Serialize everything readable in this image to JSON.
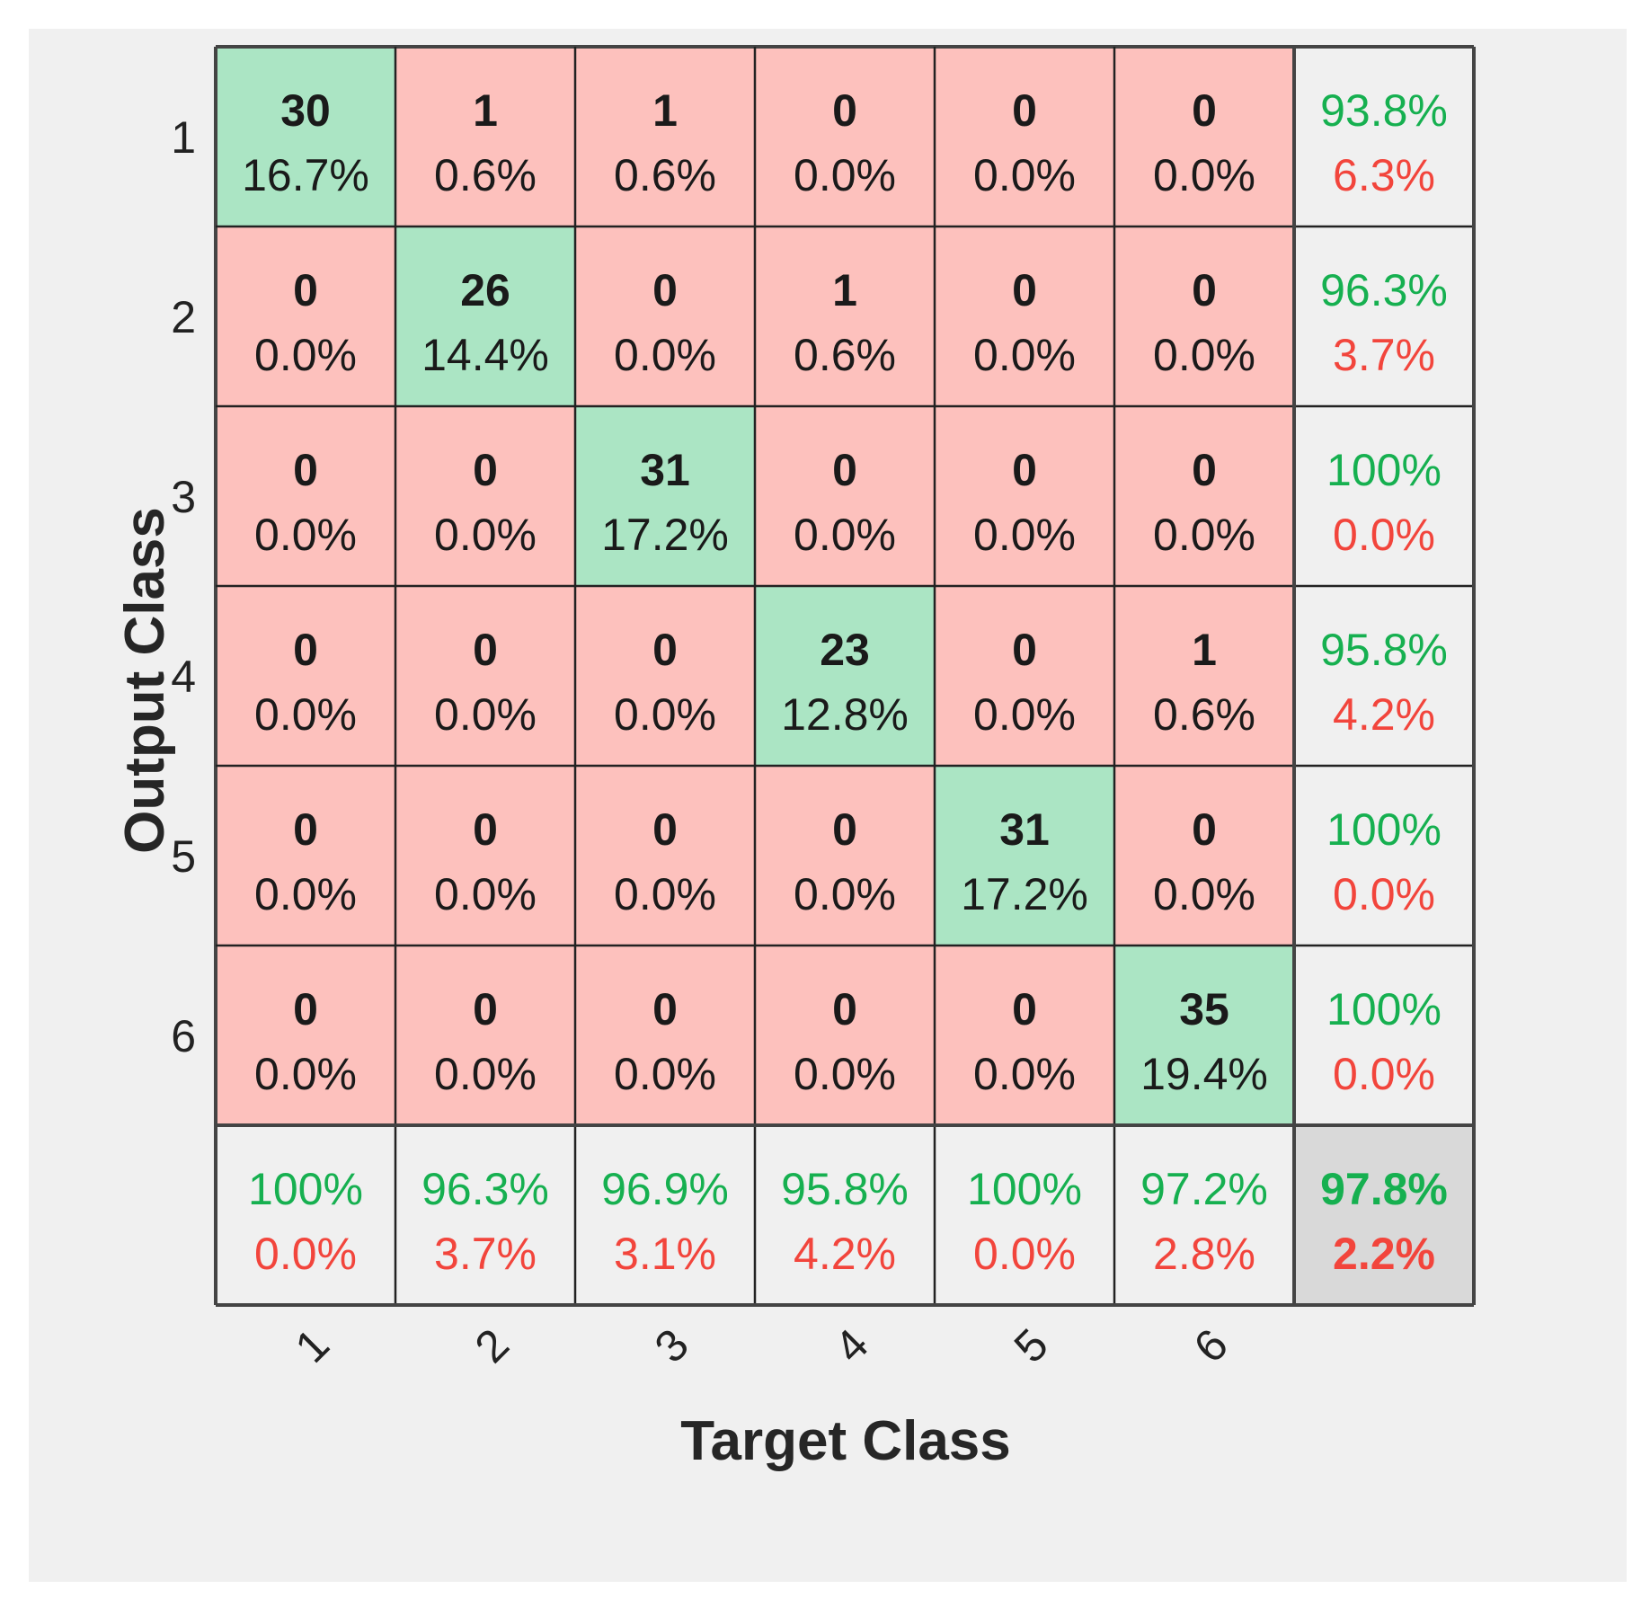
{
  "chart_data": {
    "type": "heatmap",
    "xlabel": "Target Class",
    "ylabel": "Output Class",
    "x_ticks": [
      "1",
      "2",
      "3",
      "4",
      "5",
      "6"
    ],
    "y_ticks": [
      "1",
      "2",
      "3",
      "4",
      "5",
      "6"
    ],
    "matrix": {
      "counts": [
        [
          30,
          1,
          1,
          0,
          0,
          0
        ],
        [
          0,
          26,
          0,
          1,
          0,
          0
        ],
        [
          0,
          0,
          31,
          0,
          0,
          0
        ],
        [
          0,
          0,
          0,
          23,
          0,
          1
        ],
        [
          0,
          0,
          0,
          0,
          31,
          0
        ],
        [
          0,
          0,
          0,
          0,
          0,
          35
        ]
      ],
      "percents": [
        [
          "16.7%",
          "0.6%",
          "0.6%",
          "0.0%",
          "0.0%",
          "0.0%"
        ],
        [
          "0.0%",
          "14.4%",
          "0.0%",
          "0.6%",
          "0.0%",
          "0.0%"
        ],
        [
          "0.0%",
          "0.0%",
          "17.2%",
          "0.0%",
          "0.0%",
          "0.0%"
        ],
        [
          "0.0%",
          "0.0%",
          "0.0%",
          "12.8%",
          "0.0%",
          "0.6%"
        ],
        [
          "0.0%",
          "0.0%",
          "0.0%",
          "0.0%",
          "17.2%",
          "0.0%"
        ],
        [
          "0.0%",
          "0.0%",
          "0.0%",
          "0.0%",
          "0.0%",
          "19.4%"
        ]
      ]
    },
    "row_summary": [
      {
        "correct": "93.8%",
        "incorrect": "6.3%"
      },
      {
        "correct": "96.3%",
        "incorrect": "3.7%"
      },
      {
        "correct": "100%",
        "incorrect": "0.0%"
      },
      {
        "correct": "95.8%",
        "incorrect": "4.2%"
      },
      {
        "correct": "100%",
        "incorrect": "0.0%"
      },
      {
        "correct": "100%",
        "incorrect": "0.0%"
      }
    ],
    "column_summary": [
      {
        "correct": "100%",
        "incorrect": "0.0%"
      },
      {
        "correct": "96.3%",
        "incorrect": "3.7%"
      },
      {
        "correct": "96.9%",
        "incorrect": "3.1%"
      },
      {
        "correct": "95.8%",
        "incorrect": "4.2%"
      },
      {
        "correct": "100%",
        "incorrect": "0.0%"
      },
      {
        "correct": "97.2%",
        "incorrect": "2.8%"
      }
    ],
    "overall": {
      "correct": "97.8%",
      "incorrect": "2.2%"
    },
    "colors": {
      "diagonal": "#abe5c4",
      "off_diagonal": "#fdc1bd",
      "summary": "#f0f0f0",
      "overall": "#d9d9d9",
      "good_text": "#16b050",
      "bad_text": "#f2453c",
      "background": "#f0f0f0"
    }
  }
}
